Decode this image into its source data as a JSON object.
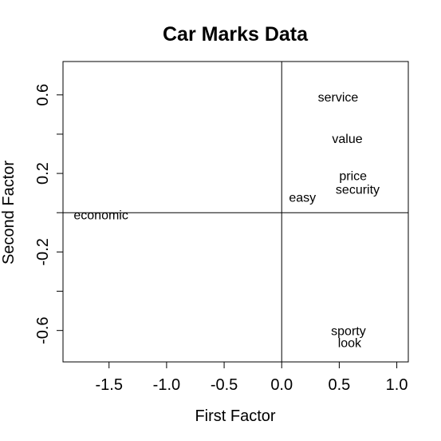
{
  "chart_data": {
    "type": "scatter",
    "title": "Car Marks Data",
    "xlabel": "First Factor",
    "ylabel": "Second Factor",
    "xlim": [
      -1.9,
      1.1
    ],
    "ylim": [
      -0.76,
      0.77
    ],
    "xticks": [
      -1.5,
      -1.0,
      -0.5,
      0.0,
      0.5,
      1.0
    ],
    "xtick_labels": [
      "-1.5",
      "-1.0",
      "-0.5",
      "0.0",
      "0.5",
      "1.0"
    ],
    "yticks": [
      -0.6,
      -0.4,
      -0.2,
      0.0,
      0.2,
      0.4,
      0.6
    ],
    "ytick_labels": [
      "-0.6",
      "",
      "-0.2",
      "",
      "0.2",
      "",
      "0.6"
    ],
    "reference_lines": {
      "x": 0,
      "y": 0
    },
    "points": [
      {
        "label": "service",
        "x": 0.49,
        "y": 0.59
      },
      {
        "label": "value",
        "x": 0.57,
        "y": 0.38
      },
      {
        "label": "price",
        "x": 0.62,
        "y": 0.19
      },
      {
        "label": "security",
        "x": 0.66,
        "y": 0.12
      },
      {
        "label": "easy",
        "x": 0.18,
        "y": 0.08
      },
      {
        "label": "economic",
        "x": -1.57,
        "y": -0.01
      },
      {
        "label": "sporty",
        "x": 0.58,
        "y": -0.6
      },
      {
        "label": "look",
        "x": 0.59,
        "y": -0.66
      }
    ]
  }
}
